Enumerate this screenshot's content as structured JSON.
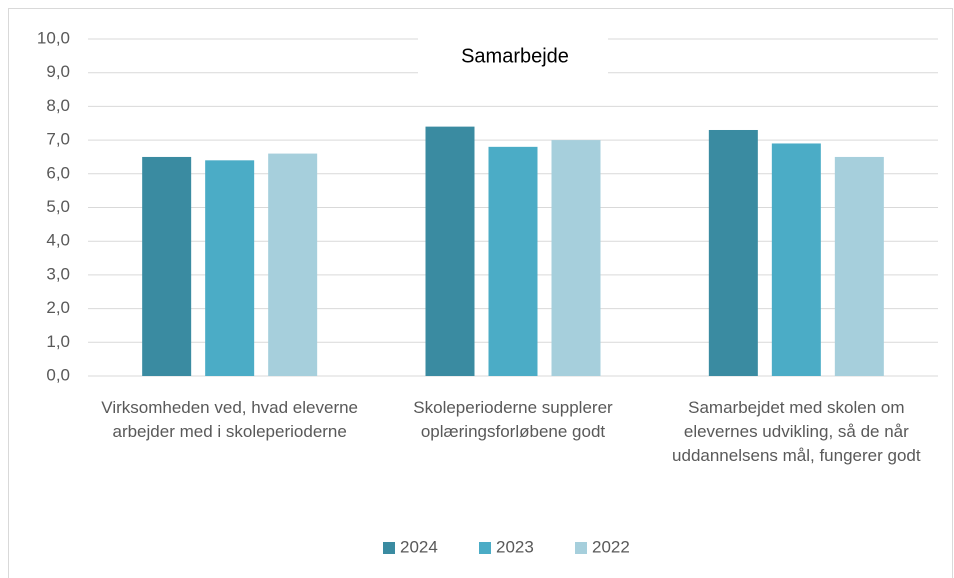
{
  "chart_data": {
    "type": "bar",
    "title": "Samarbejde",
    "categories": [
      "Virksomheden ved, hvad eleverne arbejder med i skoleperioderne",
      "Skoleperioderne supplerer oplæringsforløbene godt",
      "Samarbejdet med skolen om elevernes udvikling, så de når uddannelsens mål, fungerer godt"
    ],
    "series": [
      {
        "name": "2024",
        "color": "#3a8ba1",
        "values": [
          6.5,
          7.4,
          7.3
        ]
      },
      {
        "name": "2023",
        "color": "#4bacc6",
        "values": [
          6.4,
          6.8,
          6.9
        ]
      },
      {
        "name": "2022",
        "color": "#a6cfdc",
        "values": [
          6.6,
          7.0,
          6.5
        ]
      }
    ],
    "ylim": [
      0,
      10
    ],
    "yticks": [
      {
        "value": 0,
        "label": "0,0"
      },
      {
        "value": 1,
        "label": "1,0"
      },
      {
        "value": 2,
        "label": "2,0"
      },
      {
        "value": 3,
        "label": "3,0"
      },
      {
        "value": 4,
        "label": "4,0"
      },
      {
        "value": 5,
        "label": "5,0"
      },
      {
        "value": 6,
        "label": "6,0"
      },
      {
        "value": 7,
        "label": "7,0"
      },
      {
        "value": 8,
        "label": "8,0"
      },
      {
        "value": 9,
        "label": "9,0"
      },
      {
        "value": 10,
        "label": "10,0"
      }
    ],
    "grid": true,
    "legend": "bottom"
  }
}
